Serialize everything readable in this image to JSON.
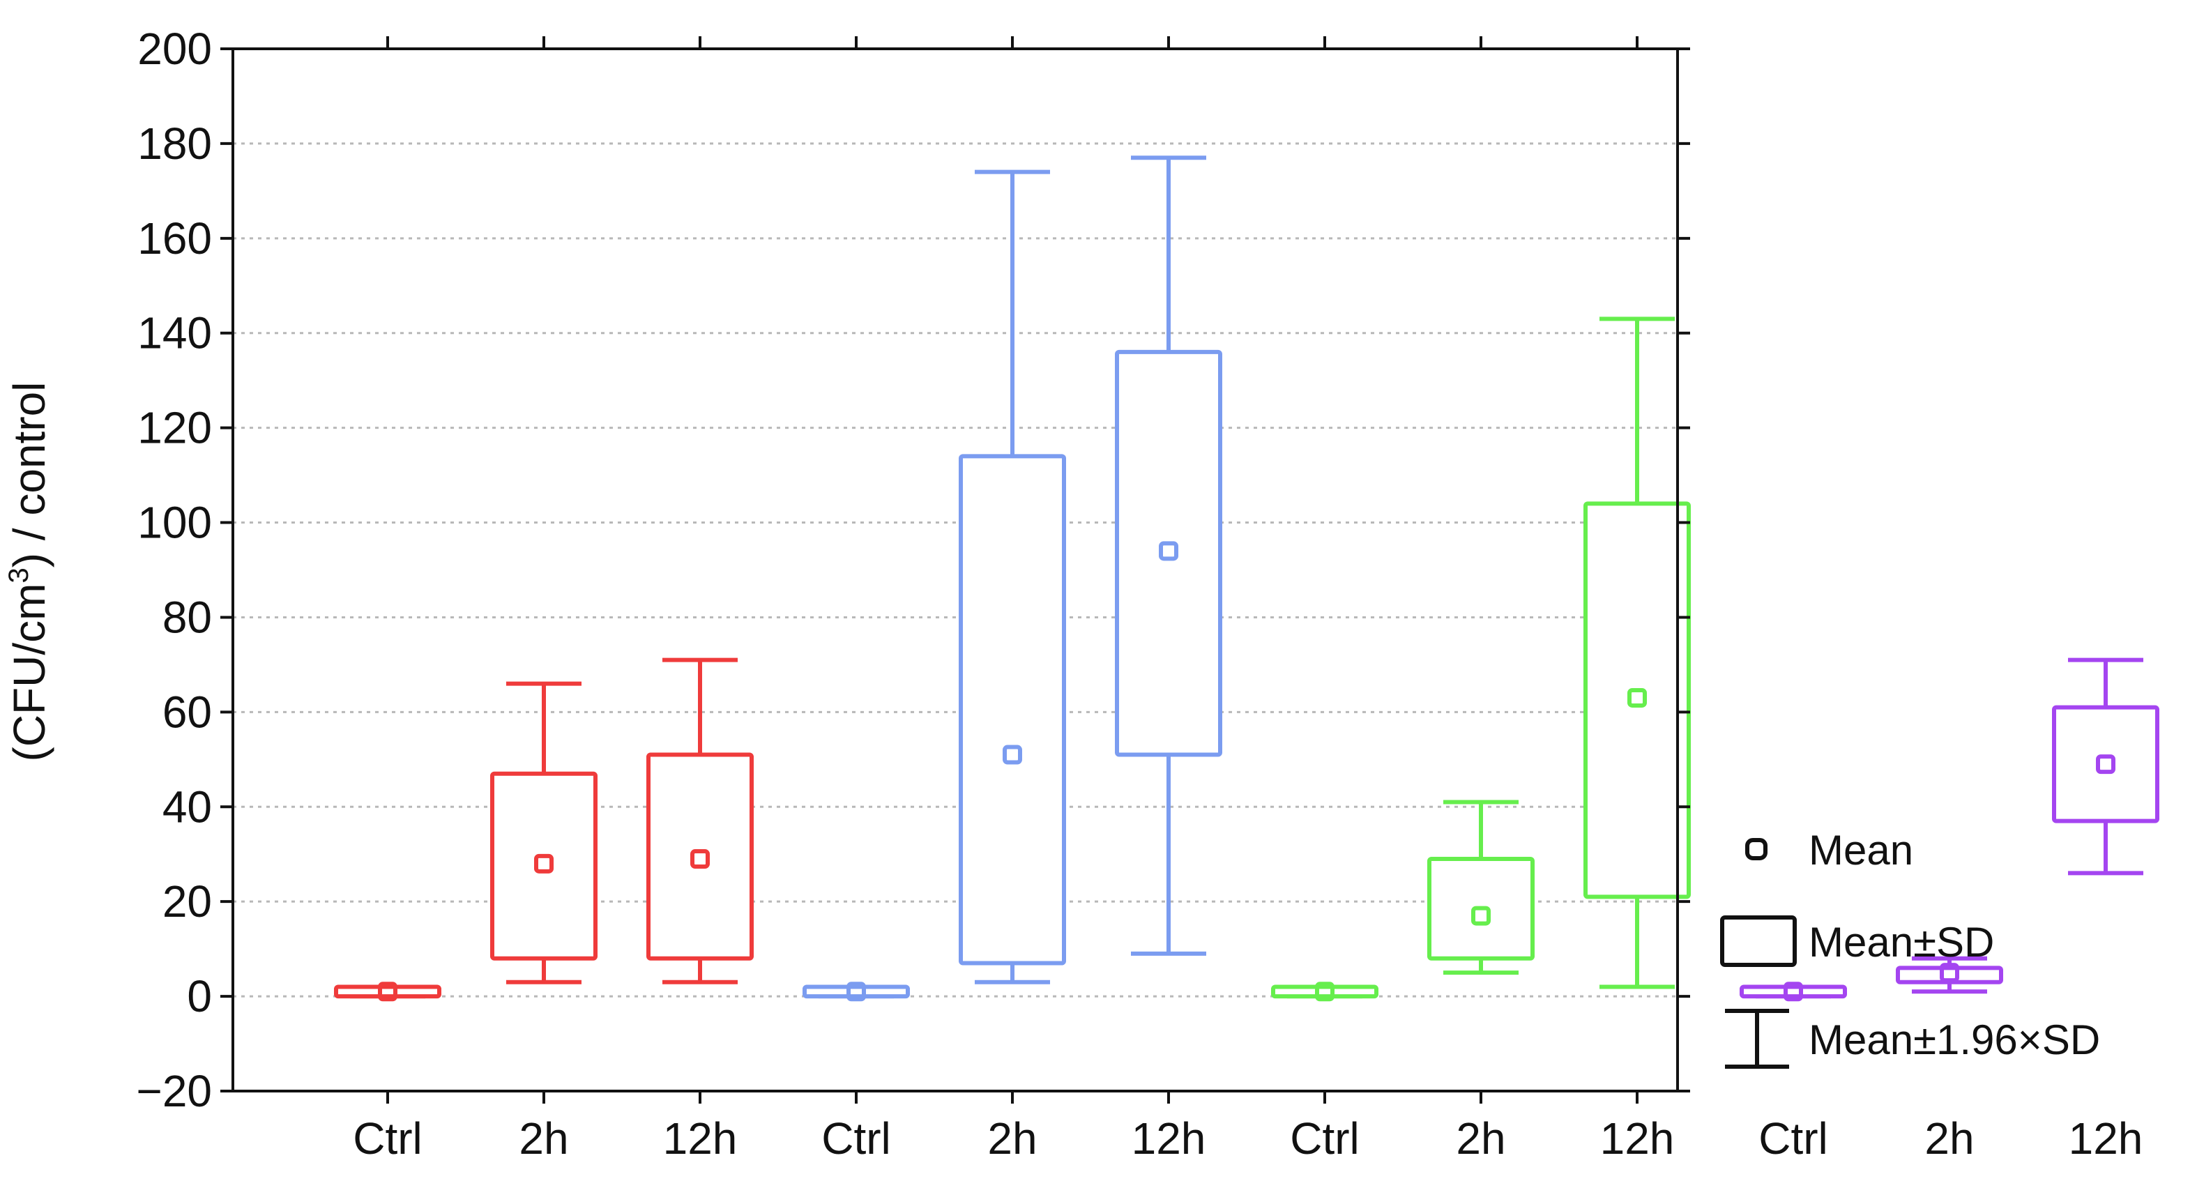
{
  "chart_data": {
    "type": "box",
    "ylabel_main": "(CFU/cm",
    "ylabel_sup": "3",
    "ylabel_tail": ") / control",
    "ylim": [
      -20,
      200
    ],
    "yticks": [
      -20,
      0,
      20,
      40,
      60,
      80,
      100,
      120,
      140,
      160,
      180,
      200
    ],
    "grid": true,
    "categories": [
      "Ctrl",
      "2h",
      "12h",
      "Ctrl",
      "2h",
      "12h",
      "Ctrl",
      "2h",
      "12h",
      "Ctrl",
      "2h",
      "12h"
    ],
    "groups": [
      {
        "color": "#ef3b3b",
        "boxes": [
          {
            "mean": 1,
            "sd_low": 0,
            "sd_high": 2,
            "whisker_low": 0,
            "whisker_high": 2
          },
          {
            "mean": 28,
            "sd_low": 8,
            "sd_high": 47,
            "whisker_low": 3,
            "whisker_high": 66
          },
          {
            "mean": 29,
            "sd_low": 8,
            "sd_high": 51,
            "whisker_low": 3,
            "whisker_high": 71
          }
        ]
      },
      {
        "color": "#7b9cf0",
        "boxes": [
          {
            "mean": 1,
            "sd_low": 0,
            "sd_high": 2,
            "whisker_low": 0,
            "whisker_high": 2
          },
          {
            "mean": 51,
            "sd_low": 7,
            "sd_high": 114,
            "whisker_low": 3,
            "whisker_high": 174
          },
          {
            "mean": 94,
            "sd_low": 51,
            "sd_high": 136,
            "whisker_low": 9,
            "whisker_high": 177
          }
        ]
      },
      {
        "color": "#66ee4d",
        "boxes": [
          {
            "mean": 1,
            "sd_low": 0,
            "sd_high": 2,
            "whisker_low": 0,
            "whisker_high": 2
          },
          {
            "mean": 17,
            "sd_low": 8,
            "sd_high": 29,
            "whisker_low": 5,
            "whisker_high": 41
          },
          {
            "mean": 63,
            "sd_low": 21,
            "sd_high": 104,
            "whisker_low": 2,
            "whisker_high": 143
          }
        ]
      },
      {
        "color": "#a445f0",
        "boxes": [
          {
            "mean": 1,
            "sd_low": 0,
            "sd_high": 2,
            "whisker_low": 0,
            "whisker_high": 2
          },
          {
            "mean": 5,
            "sd_low": 3,
            "sd_high": 6,
            "whisker_low": 1,
            "whisker_high": 8
          },
          {
            "mean": 49,
            "sd_low": 37,
            "sd_high": 61,
            "whisker_low": 26,
            "whisker_high": 71
          }
        ]
      }
    ],
    "legend": {
      "position": "right",
      "items": [
        {
          "symbol": "mean-marker",
          "label": "Mean"
        },
        {
          "symbol": "sd-box",
          "label": "Mean±SD"
        },
        {
          "symbol": "whisker",
          "label": "Mean±1.96×SD"
        }
      ]
    }
  }
}
